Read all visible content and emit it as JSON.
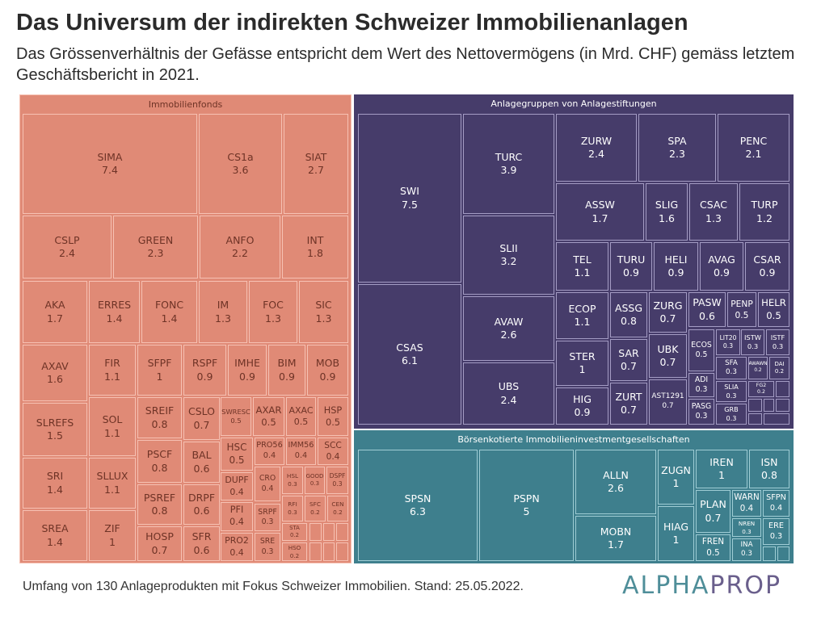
{
  "header": {
    "title": "Das Universum der indirekten Schweizer Immobilienanlagen",
    "subtitle": "Das Grössenverhältnis der Gefässe entspricht dem Wert des Nettovermögens (in Mrd. CHF) gemäss letztem Geschäftsbericht in 2021."
  },
  "footer": {
    "note": "Umfang von 130 Anlageprodukten mit Fokus Schweizer Immobilien. Stand: 25.05.2022.",
    "logo_a": "ALPHA",
    "logo_b": "PROP"
  },
  "colors": {
    "immobilienfonds": "#e08a76",
    "anlagestiftungen": "#463c6a",
    "boersenkotierte": "#3e7f8d"
  },
  "chart_data": {
    "type": "treemap",
    "title": "Das Universum der indirekten Schweizer Immobilienanlagen",
    "unit": "Mrd. CHF",
    "groups": [
      {
        "name": "Immobilienfonds",
        "items": [
          {
            "label": "SIMA",
            "value": 7.4
          },
          {
            "label": "CS1a",
            "value": 3.6
          },
          {
            "label": "SIAT",
            "value": 2.7
          },
          {
            "label": "CSLP",
            "value": 2.4
          },
          {
            "label": "GREEN",
            "value": 2.3
          },
          {
            "label": "ANFO",
            "value": 2.2
          },
          {
            "label": "INT",
            "value": 1.8
          },
          {
            "label": "AKA",
            "value": 1.7
          },
          {
            "label": "ERRES",
            "value": 1.4
          },
          {
            "label": "FONC",
            "value": 1.4
          },
          {
            "label": "IM",
            "value": 1.3
          },
          {
            "label": "FOC",
            "value": 1.3
          },
          {
            "label": "SIC",
            "value": 1.3
          },
          {
            "label": "AXAV",
            "value": 1.6
          },
          {
            "label": "SLREFS",
            "value": 1.5
          },
          {
            "label": "SRI",
            "value": 1.4
          },
          {
            "label": "SREA",
            "value": 1.4
          },
          {
            "label": "FIR",
            "value": 1.1
          },
          {
            "label": "SOL",
            "value": 1.1
          },
          {
            "label": "SLLUX",
            "value": 1.1
          },
          {
            "label": "ZIF",
            "value": 1
          },
          {
            "label": "SFPF",
            "value": 1
          },
          {
            "label": "RSPF",
            "value": 0.9
          },
          {
            "label": "IMHE",
            "value": 0.9
          },
          {
            "label": "BIM",
            "value": 0.9
          },
          {
            "label": "MOB",
            "value": 0.9
          },
          {
            "label": "SREIF",
            "value": 0.8
          },
          {
            "label": "PSCF",
            "value": 0.8
          },
          {
            "label": "PSREF",
            "value": 0.8
          },
          {
            "label": "HOSP",
            "value": 0.7
          },
          {
            "label": "CSLO",
            "value": 0.7
          },
          {
            "label": "BAL",
            "value": 0.6
          },
          {
            "label": "DRPF",
            "value": 0.6
          },
          {
            "label": "SFR",
            "value": 0.6
          },
          {
            "label": "SWRESC",
            "value": 0.5
          },
          {
            "label": "AXAR",
            "value": 0.5
          },
          {
            "label": "AXAC",
            "value": 0.5
          },
          {
            "label": "HSP",
            "value": 0.5
          },
          {
            "label": "HSC",
            "value": 0.5
          },
          {
            "label": "PRO56",
            "value": 0.4
          },
          {
            "label": "IMM56",
            "value": 0.4
          },
          {
            "label": "SCC",
            "value": 0.4
          },
          {
            "label": "DUPF",
            "value": 0.4
          },
          {
            "label": "CRO",
            "value": 0.4
          },
          {
            "label": "HSL",
            "value": 0.3
          },
          {
            "label": "GOOD",
            "value": 0.3
          },
          {
            "label": "DSPF",
            "value": 0.3
          },
          {
            "label": "PFI",
            "value": 0.4
          },
          {
            "label": "SRPF",
            "value": 0.3
          },
          {
            "label": "RFI",
            "value": 0.3
          },
          {
            "label": "SFC",
            "value": 0.2
          },
          {
            "label": "CEN",
            "value": 0.2
          },
          {
            "label": "PRO2",
            "value": 0.4
          },
          {
            "label": "SRE",
            "value": 0.3
          },
          {
            "label": "STA",
            "value": 0.2
          },
          {
            "label": "HSO",
            "value": 0.2
          },
          {
            "label": "",
            "value": null
          },
          {
            "label": "",
            "value": null
          },
          {
            "label": "",
            "value": null
          },
          {
            "label": "",
            "value": null
          },
          {
            "label": "",
            "value": null
          },
          {
            "label": "",
            "value": null
          }
        ]
      },
      {
        "name": "Anlagegruppen von Anlagestiftungen",
        "items": [
          {
            "label": "SWI",
            "value": 7.5
          },
          {
            "label": "CSAS",
            "value": 6.1
          },
          {
            "label": "TURC",
            "value": 3.9
          },
          {
            "label": "SLII",
            "value": 3.2
          },
          {
            "label": "AVAW",
            "value": 2.6
          },
          {
            "label": "UBS",
            "value": 2.4
          },
          {
            "label": "ZURW",
            "value": 2.4
          },
          {
            "label": "SPA",
            "value": 2.3
          },
          {
            "label": "PENC",
            "value": 2.1
          },
          {
            "label": "ASSW",
            "value": 1.7
          },
          {
            "label": "SLIG",
            "value": 1.6
          },
          {
            "label": "CSAC",
            "value": 1.3
          },
          {
            "label": "TURP",
            "value": 1.2
          },
          {
            "label": "TEL",
            "value": 1.1
          },
          {
            "label": "TURU",
            "value": 0.9
          },
          {
            "label": "HELI",
            "value": 0.9
          },
          {
            "label": "AVAG",
            "value": 0.9
          },
          {
            "label": "CSAR",
            "value": 0.9
          },
          {
            "label": "ECOP",
            "value": 1.1
          },
          {
            "label": "STER",
            "value": 1
          },
          {
            "label": "HIG",
            "value": 0.9
          },
          {
            "label": "ASSG",
            "value": 0.8
          },
          {
            "label": "SAR",
            "value": 0.7
          },
          {
            "label": "ZURT",
            "value": 0.7
          },
          {
            "label": "ZURG",
            "value": 0.7
          },
          {
            "label": "UBK",
            "value": 0.7
          },
          {
            "label": "AST1291",
            "value": 0.7
          },
          {
            "label": "PASW",
            "value": 0.6
          },
          {
            "label": "PENP",
            "value": 0.5
          },
          {
            "label": "HELR",
            "value": 0.5
          },
          {
            "label": "ECOS",
            "value": 0.5
          },
          {
            "label": "ADI",
            "value": 0.3
          },
          {
            "label": "PASG",
            "value": 0.3
          },
          {
            "label": "LIT20",
            "value": 0.3
          },
          {
            "label": "ISTW",
            "value": 0.3
          },
          {
            "label": "ISTF",
            "value": 0.3
          },
          {
            "label": "SFA",
            "value": 0.3
          },
          {
            "label": "AWAWN",
            "value": 0.2
          },
          {
            "label": "DAI",
            "value": 0.2
          },
          {
            "label": "SLIA",
            "value": 0.3
          },
          {
            "label": "FG2",
            "value": 0.2
          },
          {
            "label": "",
            "value": null
          },
          {
            "label": "GRB",
            "value": 0.3
          },
          {
            "label": "",
            "value": null
          },
          {
            "label": "",
            "value": null
          },
          {
            "label": "",
            "value": null
          },
          {
            "label": "",
            "value": null
          },
          {
            "label": "",
            "value": null
          }
        ]
      },
      {
        "name": "Börsenkotierte Immobilieninvestmentgesellschaften",
        "items": [
          {
            "label": "SPSN",
            "value": 6.3
          },
          {
            "label": "PSPN",
            "value": 5
          },
          {
            "label": "ALLN",
            "value": 2.6
          },
          {
            "label": "MOBN",
            "value": 1.7
          },
          {
            "label": "ZUGN",
            "value": 1
          },
          {
            "label": "HIAG",
            "value": 1
          },
          {
            "label": "IREN",
            "value": 1
          },
          {
            "label": "ISN",
            "value": 0.8
          },
          {
            "label": "PLAN",
            "value": 0.7
          },
          {
            "label": "FREN",
            "value": 0.5
          },
          {
            "label": "WARN",
            "value": 0.4
          },
          {
            "label": "SFPN",
            "value": 0.4
          },
          {
            "label": "NREN",
            "value": 0.3
          },
          {
            "label": "ERE",
            "value": 0.3
          },
          {
            "label": "INA",
            "value": 0.3
          },
          {
            "label": "",
            "value": null
          },
          {
            "label": "",
            "value": null
          }
        ]
      }
    ]
  }
}
